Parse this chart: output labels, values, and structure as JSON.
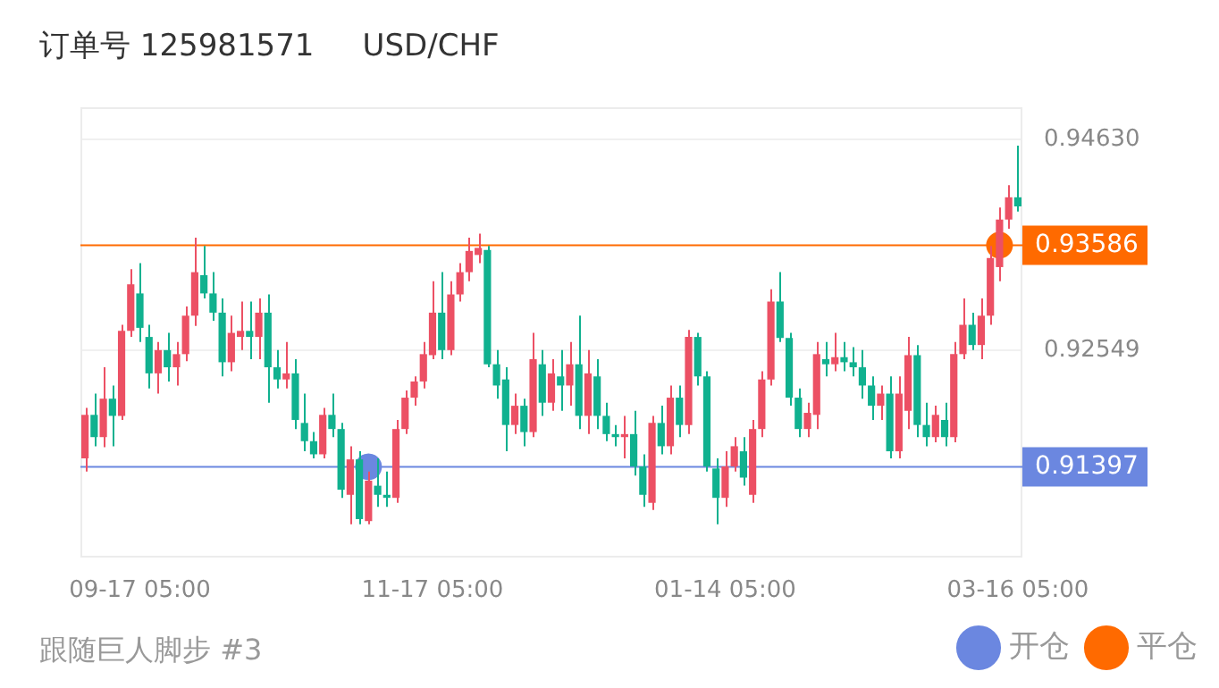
{
  "chart_data": {
    "type": "candlestick",
    "title": "订单号 125981571     USD/CHF",
    "annotations": [
      "跟随巨人脚步 #3"
    ],
    "categories": [
      null,
      null,
      null,
      null,
      null,
      null,
      "09-17 05:00",
      null,
      null,
      null,
      null,
      null,
      null,
      null,
      null,
      null,
      null,
      null,
      null,
      null,
      null,
      null,
      null,
      null,
      null,
      null,
      null,
      null,
      null,
      null,
      null,
      null,
      null,
      null,
      null,
      null,
      null,
      null,
      "11-17 05:00",
      null,
      null,
      null,
      null,
      null,
      null,
      null,
      null,
      null,
      null,
      null,
      null,
      null,
      null,
      null,
      null,
      null,
      null,
      null,
      null,
      null,
      null,
      null,
      null,
      null,
      null,
      null,
      null,
      null,
      null,
      null,
      "01-14 05:00",
      null,
      null,
      null,
      null,
      null,
      null,
      null,
      null,
      null,
      null,
      null,
      null,
      null,
      null,
      null,
      null,
      null,
      null,
      null,
      null,
      null,
      null,
      null,
      null,
      null,
      null,
      null,
      null,
      null,
      null,
      null,
      "03-16 05:00"
    ],
    "ohlc": [
      [
        0.9148,
        0.9198,
        0.9135,
        0.9191
      ],
      [
        0.9191,
        0.9212,
        0.916,
        0.9169
      ],
      [
        0.9169,
        0.9238,
        0.9159,
        0.9207
      ],
      [
        0.9207,
        0.922,
        0.916,
        0.919
      ],
      [
        0.919,
        0.928,
        0.9186,
        0.9274
      ],
      [
        0.9274,
        0.9335,
        0.9268,
        0.932
      ],
      [
        0.9311,
        0.9341,
        0.9263,
        0.9277
      ],
      [
        0.9268,
        0.928,
        0.9217,
        0.9232
      ],
      [
        0.9232,
        0.9263,
        0.9212,
        0.9255
      ],
      [
        0.9255,
        0.9272,
        0.9224,
        0.9238
      ],
      [
        0.9238,
        0.9263,
        0.922,
        0.9251
      ],
      [
        0.9251,
        0.9298,
        0.9244,
        0.9289
      ],
      [
        0.9289,
        0.9366,
        0.9279,
        0.9332
      ],
      [
        0.9329,
        0.9358,
        0.9306,
        0.9311
      ],
      [
        0.9311,
        0.9332,
        0.9284,
        0.9292
      ],
      [
        0.9292,
        0.9306,
        0.9229,
        0.9243
      ],
      [
        0.9243,
        0.9289,
        0.9234,
        0.9272
      ],
      [
        0.9268,
        0.9303,
        0.9255,
        0.9274
      ],
      [
        0.9274,
        0.9303,
        0.9246,
        0.9268
      ],
      [
        0.9268,
        0.9306,
        0.9246,
        0.9292
      ],
      [
        0.9292,
        0.931,
        0.9203,
        0.9238
      ],
      [
        0.9238,
        0.9255,
        0.9217,
        0.9226
      ],
      [
        0.9226,
        0.9263,
        0.9217,
        0.9232
      ],
      [
        0.9232,
        0.9246,
        0.9177,
        0.9186
      ],
      [
        0.9183,
        0.9212,
        0.9155,
        0.9165
      ],
      [
        0.9165,
        0.9174,
        0.9148,
        0.9152
      ],
      [
        0.9152,
        0.9198,
        0.9148,
        0.9191
      ],
      [
        0.9191,
        0.9212,
        0.9169,
        0.9177
      ],
      [
        0.9177,
        0.9183,
        0.9109,
        0.9117
      ],
      [
        0.9112,
        0.916,
        0.9083,
        0.9147
      ],
      [
        0.9147,
        0.9155,
        0.9083,
        0.9088
      ],
      [
        0.9086,
        0.9135,
        0.9083,
        0.9126
      ],
      [
        0.9121,
        0.9148,
        0.91,
        0.9112
      ],
      [
        0.9112,
        0.9135,
        0.91,
        0.9109
      ],
      [
        0.9109,
        0.9186,
        0.9104,
        0.9177
      ],
      [
        0.9177,
        0.9215,
        0.9172,
        0.9208
      ],
      [
        0.9208,
        0.9229,
        0.92,
        0.9224
      ],
      [
        0.9224,
        0.9263,
        0.9217,
        0.9251
      ],
      [
        0.925,
        0.9323,
        0.9246,
        0.9292
      ],
      [
        0.9292,
        0.9332,
        0.9246,
        0.9255
      ],
      [
        0.9255,
        0.9323,
        0.925,
        0.931
      ],
      [
        0.931,
        0.9341,
        0.9303,
        0.9332
      ],
      [
        0.9332,
        0.9366,
        0.9323,
        0.9353
      ],
      [
        0.9349,
        0.937,
        0.9341,
        0.9356
      ],
      [
        0.9354,
        0.9358,
        0.9238,
        0.9241
      ],
      [
        0.9241,
        0.9255,
        0.9207,
        0.922
      ],
      [
        0.9226,
        0.9238,
        0.9155,
        0.9181
      ],
      [
        0.9181,
        0.9212,
        0.9172,
        0.92
      ],
      [
        0.92,
        0.9207,
        0.916,
        0.9174
      ],
      [
        0.9174,
        0.9272,
        0.9169,
        0.9246
      ],
      [
        0.9241,
        0.9255,
        0.919,
        0.9203
      ],
      [
        0.9203,
        0.9246,
        0.9195,
        0.9232
      ],
      [
        0.9229,
        0.9255,
        0.9195,
        0.922
      ],
      [
        0.922,
        0.9263,
        0.92,
        0.9241
      ],
      [
        0.9241,
        0.9289,
        0.9177,
        0.919
      ],
      [
        0.919,
        0.9255,
        0.9172,
        0.9232
      ],
      [
        0.9229,
        0.9246,
        0.9177,
        0.919
      ],
      [
        0.919,
        0.9203,
        0.9165,
        0.9172
      ],
      [
        0.9172,
        0.9181,
        0.916,
        0.9169
      ],
      [
        0.9169,
        0.919,
        0.9148,
        0.9172
      ],
      [
        0.9172,
        0.9195,
        0.9131,
        0.914
      ],
      [
        0.914,
        0.9152,
        0.91,
        0.9112
      ],
      [
        0.9104,
        0.919,
        0.9097,
        0.9183
      ],
      [
        0.9183,
        0.92,
        0.9152,
        0.916
      ],
      [
        0.916,
        0.922,
        0.9152,
        0.9208
      ],
      [
        0.9208,
        0.922,
        0.9169,
        0.9181
      ],
      [
        0.9181,
        0.9275,
        0.9172,
        0.9268
      ],
      [
        0.9268,
        0.9272,
        0.922,
        0.9229
      ],
      [
        0.9229,
        0.9234,
        0.9135,
        0.914
      ],
      [
        0.9138,
        0.9148,
        0.9083,
        0.9109
      ],
      [
        0.9109,
        0.9155,
        0.91,
        0.914
      ],
      [
        0.914,
        0.9169,
        0.9135,
        0.916
      ],
      [
        0.9155,
        0.9169,
        0.9121,
        0.9129
      ],
      [
        0.9112,
        0.9186,
        0.9104,
        0.9177
      ],
      [
        0.9177,
        0.9234,
        0.9169,
        0.9226
      ],
      [
        0.9226,
        0.9315,
        0.922,
        0.9303
      ],
      [
        0.9303,
        0.9332,
        0.9263,
        0.9267
      ],
      [
        0.9267,
        0.9272,
        0.92,
        0.9208
      ],
      [
        0.9208,
        0.9217,
        0.9169,
        0.9177
      ],
      [
        0.9177,
        0.9203,
        0.9169,
        0.9193
      ],
      [
        0.9191,
        0.9263,
        0.9177,
        0.9251
      ],
      [
        0.9246,
        0.9263,
        0.9229,
        0.9241
      ],
      [
        0.9241,
        0.9272,
        0.9234,
        0.9248
      ],
      [
        0.9248,
        0.9263,
        0.9234,
        0.9243
      ],
      [
        0.9243,
        0.9258,
        0.9229,
        0.9238
      ],
      [
        0.9238,
        0.9255,
        0.9207,
        0.922
      ],
      [
        0.922,
        0.9229,
        0.9186,
        0.92
      ],
      [
        0.92,
        0.922,
        0.9186,
        0.9212
      ],
      [
        0.9212,
        0.9229,
        0.9148,
        0.9155
      ],
      [
        0.9155,
        0.9229,
        0.9148,
        0.9212
      ],
      [
        0.9195,
        0.9268,
        0.9177,
        0.925
      ],
      [
        0.925,
        0.926,
        0.9169,
        0.9181
      ],
      [
        0.9181,
        0.9203,
        0.916,
        0.9169
      ],
      [
        0.9169,
        0.92,
        0.9164,
        0.9191
      ],
      [
        0.9186,
        0.9203,
        0.916,
        0.9169
      ],
      [
        0.9169,
        0.9263,
        0.9164,
        0.9251
      ],
      [
        0.9251,
        0.9306,
        0.9246,
        0.928
      ],
      [
        0.928,
        0.9292,
        0.9255,
        0.926
      ],
      [
        0.926,
        0.9306,
        0.9246,
        0.9289
      ],
      [
        0.9289,
        0.9358,
        0.928,
        0.9346
      ],
      [
        0.9337,
        0.9396,
        0.9323,
        0.9384
      ],
      [
        0.9384,
        0.9418,
        0.9375,
        0.9406
      ],
      [
        0.9406,
        0.9457,
        0.9392,
        0.9397
      ]
    ],
    "colors": [
      "#ec5064",
      "#10b18f",
      "#ec5064",
      "#10b18f",
      "#ec5064",
      "#ec5064",
      "#10b18f",
      "#10b18f",
      "#ec5064",
      "#10b18f",
      "#ec5064",
      "#ec5064",
      "#ec5064",
      "#10b18f",
      "#10b18f",
      "#10b18f",
      "#ec5064",
      "#ec5064",
      "#10b18f",
      "#ec5064",
      "#10b18f",
      "#10b18f",
      "#ec5064",
      "#10b18f",
      "#10b18f",
      "#10b18f",
      "#ec5064",
      "#10b18f",
      "#10b18f",
      "#ec5064",
      "#10b18f",
      "#ec5064",
      "#10b18f",
      "#10b18f",
      "#ec5064",
      "#ec5064",
      "#ec5064",
      "#ec5064",
      "#ec5064",
      "#10b18f",
      "#ec5064",
      "#ec5064",
      "#ec5064",
      "#ec5064",
      "#10b18f",
      "#10b18f",
      "#10b18f",
      "#ec5064",
      "#10b18f",
      "#ec5064",
      "#10b18f",
      "#ec5064",
      "#10b18f",
      "#ec5064",
      "#10b18f",
      "#ec5064",
      "#10b18f",
      "#10b18f",
      "#10b18f",
      "#ec5064",
      "#10b18f",
      "#10b18f",
      "#ec5064",
      "#10b18f",
      "#ec5064",
      "#10b18f",
      "#ec5064",
      "#10b18f",
      "#10b18f",
      "#10b18f",
      "#ec5064",
      "#ec5064",
      "#10b18f",
      "#ec5064",
      "#ec5064",
      "#ec5064",
      "#10b18f",
      "#10b18f",
      "#10b18f",
      "#ec5064",
      "#ec5064",
      "#10b18f",
      "#ec5064",
      "#10b18f",
      "#10b18f",
      "#10b18f",
      "#10b18f",
      "#ec5064",
      "#10b18f",
      "#ec5064",
      "#ec5064",
      "#10b18f",
      "#10b18f",
      "#ec5064",
      "#10b18f",
      "#ec5064",
      "#ec5064",
      "#10b18f",
      "#ec5064",
      "#ec5064",
      "#ec5064",
      "#ec5064",
      "#10b18f"
    ],
    "series": [
      {
        "name": "开仓",
        "type": "scatter",
        "color": "#6b87e0",
        "values": [
          null,
          null,
          null,
          null,
          null,
          null,
          null,
          null,
          null,
          null,
          null,
          null,
          null,
          null,
          null,
          null,
          null,
          null,
          null,
          null,
          null,
          null,
          null,
          null,
          null,
          null,
          null,
          null,
          null,
          null,
          null,
          0.91397,
          null,
          null,
          null,
          null,
          null,
          null,
          null,
          null,
          null,
          null,
          null,
          null,
          null,
          null,
          null,
          null,
          null,
          null,
          null,
          null,
          null,
          null,
          null,
          null,
          null,
          null,
          null,
          null,
          null,
          null,
          null,
          null,
          null,
          null,
          null,
          null,
          null,
          null,
          null,
          null,
          null,
          null,
          null,
          null,
          null,
          null,
          null,
          null,
          null,
          null,
          null,
          null,
          null,
          null,
          null,
          null,
          null,
          null,
          null,
          null,
          null,
          null,
          null,
          null,
          null,
          null,
          null,
          null,
          null,
          null,
          null
        ]
      },
      {
        "name": "平仓",
        "type": "scatter",
        "color": "#ff6a00",
        "values": [
          null,
          null,
          null,
          null,
          null,
          null,
          null,
          null,
          null,
          null,
          null,
          null,
          null,
          null,
          null,
          null,
          null,
          null,
          null,
          null,
          null,
          null,
          null,
          null,
          null,
          null,
          null,
          null,
          null,
          null,
          null,
          null,
          null,
          null,
          null,
          null,
          null,
          null,
          null,
          null,
          null,
          null,
          null,
          null,
          null,
          null,
          null,
          null,
          null,
          null,
          null,
          null,
          null,
          null,
          null,
          null,
          null,
          null,
          null,
          null,
          null,
          null,
          null,
          null,
          null,
          null,
          null,
          null,
          null,
          null,
          null,
          null,
          null,
          null,
          null,
          null,
          null,
          null,
          null,
          null,
          null,
          null,
          null,
          null,
          null,
          null,
          null,
          null,
          null,
          null,
          null,
          null,
          null,
          null,
          null,
          null,
          null,
          null,
          null,
          null,
          0.93586,
          null,
          null
        ]
      }
    ],
    "ref_lines": [
      {
        "axis": "y",
        "value": 0.93586,
        "label": "0.93586",
        "color": "#ff6a00"
      },
      {
        "axis": "y",
        "value": 0.91397,
        "label": "0.91397",
        "color": "#6b87e0"
      }
    ],
    "ylim": [
      0.905,
      0.9495
    ],
    "yticks": [
      {
        "value": 0.9463,
        "label": "0.94630"
      },
      {
        "value": 0.92549,
        "label": "0.92549"
      }
    ],
    "grid": "y",
    "legend": "bottom right",
    "marker": "circle"
  }
}
